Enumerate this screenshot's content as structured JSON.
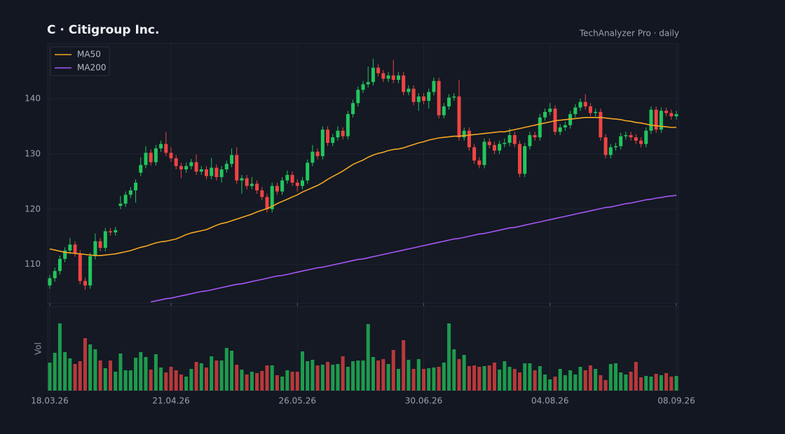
{
  "chart_data": {
    "type": "candlestick",
    "title": "C  ·  Citigroup Inc.",
    "subtitle": "TechAnalyzer Pro · daily",
    "categories": [
      "18.03.26",
      null,
      null,
      null,
      null,
      null,
      null,
      null,
      null,
      null,
      null,
      null,
      null,
      null,
      null,
      null,
      null,
      null,
      null,
      null,
      null,
      null,
      null,
      null,
      "21.04.26",
      null,
      null,
      null,
      null,
      null,
      null,
      null,
      null,
      null,
      null,
      null,
      null,
      null,
      null,
      null,
      null,
      null,
      null,
      null,
      null,
      null,
      null,
      null,
      null,
      "26.05.26",
      null,
      null,
      null,
      null,
      null,
      null,
      null,
      null,
      null,
      null,
      null,
      null,
      null,
      null,
      null,
      null,
      null,
      null,
      null,
      null,
      null,
      null,
      null,
      null,
      "30.06.26",
      null,
      null,
      null,
      null,
      null,
      null,
      null,
      null,
      null,
      null,
      null,
      null,
      null,
      null,
      null,
      null,
      null,
      null,
      null,
      null,
      null,
      null,
      null,
      null,
      "04.08.26",
      null,
      null,
      null,
      null,
      null,
      null,
      null,
      null,
      null,
      null,
      null,
      null,
      null,
      null,
      null,
      null,
      null,
      null,
      null,
      null,
      null,
      null,
      null,
      null,
      "08.09.26"
    ],
    "open": [
      106.2,
      107.5,
      108.8,
      111,
      112.5,
      113.6,
      112,
      107,
      106.2,
      111.5,
      114.2,
      113,
      116,
      115.8,
      120.6,
      121,
      122.6,
      123.4,
      126.6,
      128,
      130.2,
      128.5,
      131,
      131.8,
      130.2,
      129.2,
      127.8,
      127.2,
      127.8,
      128.5,
      126.8,
      127.2,
      126,
      127.5,
      125.8,
      127.2,
      128.2,
      129.8,
      125.2,
      125.6,
      124.2,
      124.6,
      123.4,
      122.2,
      120,
      124.2,
      123.2,
      125.2,
      126.2,
      124.8,
      124.2,
      125.2,
      128.4,
      130.4,
      129.6,
      134.4,
      132,
      133,
      134.2,
      133.2,
      137.2,
      139.2,
      141.6,
      142.6,
      143,
      145.6,
      144.6,
      143.6,
      144.2,
      143.4,
      144.2,
      141.2,
      141.8,
      139.4,
      140.4,
      139.6,
      141.2,
      143.2,
      137,
      138.6,
      140.2,
      140.4,
      133,
      134.2,
      131.2,
      128.8,
      128,
      132.2,
      131.6,
      130.6,
      131.8,
      132,
      133.4,
      131.8,
      126.4,
      131.4,
      133.4,
      133,
      136.6,
      137.6,
      138.2,
      134,
      134.8,
      135.2,
      137.2,
      138.4,
      139.4,
      138.6,
      137.4,
      137.6,
      133,
      129.8,
      131.2,
      131.4,
      133.2,
      133.4,
      133,
      132.4,
      131.8,
      134.2,
      138,
      134.4,
      137.8,
      137.4,
      136.8
    ],
    "high": [
      108.1,
      109.4,
      111.6,
      113.1,
      114.8,
      114.2,
      112.6,
      107.6,
      112.1,
      115.6,
      114.8,
      116.6,
      116.6,
      116.8,
      122.4,
      123.2,
      124,
      125.4,
      129.4,
      131.4,
      130.8,
      131.6,
      132.4,
      134,
      131.2,
      129.8,
      128.4,
      128.4,
      129.1,
      129.9,
      127.8,
      127.8,
      129.3,
      128.1,
      127.8,
      128.8,
      131,
      131.2,
      126.2,
      126.2,
      125.8,
      125.2,
      124,
      122.8,
      124.8,
      124.8,
      125.8,
      127,
      126.8,
      125.4,
      125.8,
      129,
      131.6,
      131,
      135,
      135,
      133.6,
      135,
      134.8,
      137.8,
      139.8,
      142.2,
      143.2,
      145.8,
      147.2,
      146.2,
      145.2,
      144.8,
      147,
      144.8,
      144.8,
      142.4,
      142.4,
      141,
      141,
      141.8,
      143.8,
      143.8,
      139.2,
      140.8,
      141,
      143.4,
      134.8,
      134.8,
      131.8,
      129.4,
      132.8,
      132.8,
      132.2,
      132.4,
      132.8,
      134.6,
      134,
      132.4,
      132,
      134,
      134,
      137.2,
      138.2,
      139.2,
      138.8,
      135.4,
      135.8,
      137.8,
      139,
      140,
      140.8,
      139.2,
      138.2,
      138.2,
      133.6,
      131.8,
      132,
      133.8,
      134,
      134,
      133.6,
      133,
      134.8,
      138.6,
      138.6,
      138.4,
      138.4,
      138,
      137.8
    ],
    "low": [
      105.6,
      106.9,
      108.2,
      110.4,
      111.9,
      111.4,
      106.4,
      105.4,
      105.6,
      110.9,
      112.4,
      112.4,
      115.2,
      115.2,
      120,
      120.4,
      122,
      121.2,
      126,
      127.4,
      127.9,
      127.9,
      130.4,
      129.6,
      128.6,
      127.2,
      125.6,
      126.6,
      127.2,
      126.2,
      126.2,
      125.4,
      125.4,
      125.2,
      124.8,
      126.6,
      127.6,
      124.6,
      122.8,
      123.6,
      123.6,
      122.8,
      121.6,
      119.4,
      119.4,
      122.6,
      122.6,
      124.6,
      124.2,
      123.2,
      123.6,
      124.6,
      127.8,
      129,
      129,
      131.4,
      131.4,
      132.4,
      132.6,
      132.6,
      136.6,
      138.6,
      141,
      142,
      142.4,
      144,
      143,
      143,
      142.8,
      142.8,
      140.6,
      140.6,
      138.8,
      137.8,
      139,
      138.2,
      140.6,
      136.4,
      136.4,
      138,
      139.6,
      132.4,
      132.4,
      130.6,
      128.2,
      127.4,
      127.4,
      131,
      130,
      130,
      131.2,
      131.4,
      131.2,
      125.8,
      125.8,
      130.8,
      132.4,
      132.4,
      136,
      137,
      133.4,
      133.4,
      134.2,
      134.6,
      136.6,
      137.8,
      138,
      136.8,
      136.8,
      132.4,
      129.2,
      129.2,
      130.6,
      130.8,
      132.6,
      132.4,
      131.8,
      131.2,
      131.2,
      133.6,
      133.8,
      133.8,
      136.8,
      136.2,
      136.2
    ],
    "close": [
      107.5,
      108.8,
      111,
      112.5,
      113.6,
      112,
      107,
      106.2,
      111.5,
      114.2,
      113,
      116,
      115.8,
      116.2,
      121,
      122.6,
      123.4,
      124.8,
      128,
      130.2,
      128.5,
      131,
      131.8,
      130.2,
      129.2,
      127.8,
      127.2,
      127.8,
      128.5,
      126.8,
      127.2,
      126,
      127.5,
      125.8,
      127.2,
      128.2,
      129.8,
      125.2,
      125.6,
      124.2,
      124.6,
      123.4,
      122.2,
      120,
      124.2,
      123.2,
      125.2,
      126.2,
      124.8,
      124.2,
      125.2,
      128.4,
      130.4,
      129.6,
      134.4,
      132,
      133,
      134.2,
      133.2,
      137.2,
      139.2,
      141.6,
      142.6,
      143,
      145.6,
      144.6,
      143.6,
      144.2,
      143.4,
      144.2,
      141.2,
      141.8,
      139.4,
      140.4,
      139.6,
      141.2,
      143.2,
      137,
      138.6,
      140.2,
      140.4,
      133,
      134.2,
      131.2,
      128.8,
      128,
      132.2,
      131.6,
      130.6,
      131.8,
      132,
      133.4,
      131.8,
      126.4,
      131.4,
      133.4,
      133,
      136.6,
      137.6,
      138.2,
      134,
      134.8,
      135.2,
      137.2,
      138.4,
      139.4,
      138.6,
      137.4,
      137.6,
      133,
      129.8,
      131.2,
      131.4,
      133.2,
      133.4,
      133,
      132.4,
      131.8,
      134.2,
      138,
      134.4,
      137.8,
      137.4,
      136.8,
      137.2
    ],
    "up_color": "#22c55e",
    "down_color": "#ef4444",
    "series": [
      {
        "name": "MA50",
        "color": "#f5a623",
        "values": [
          112.8,
          112.6,
          112.4,
          112.2,
          112.1,
          112.0,
          111.9,
          111.8,
          111.7,
          111.6,
          111.6,
          111.7,
          111.8,
          111.9,
          112.1,
          112.3,
          112.5,
          112.8,
          113.1,
          113.3,
          113.6,
          113.9,
          114.1,
          114.2,
          114.4,
          114.6,
          115.0,
          115.4,
          115.7,
          115.9,
          116.1,
          116.3,
          116.7,
          117.1,
          117.4,
          117.6,
          117.9,
          118.2,
          118.5,
          118.8,
          119.1,
          119.5,
          119.8,
          120.1,
          120.5,
          121.0,
          121.4,
          121.8,
          122.2,
          122.6,
          123.1,
          123.5,
          123.9,
          124.3,
          124.8,
          125.4,
          125.9,
          126.4,
          126.9,
          127.5,
          128.1,
          128.5,
          128.9,
          129.4,
          129.8,
          130.1,
          130.3,
          130.6,
          130.8,
          130.9,
          131.1,
          131.4,
          131.7,
          132.0,
          132.2,
          132.5,
          132.7,
          132.9,
          133.0,
          133.1,
          133.2,
          133.2,
          133.3,
          133.4,
          133.5,
          133.6,
          133.7,
          133.8,
          133.9,
          134.0,
          134.0,
          134.2,
          134.4,
          134.6,
          134.8,
          135.0,
          135.2,
          135.4,
          135.6,
          135.8,
          136.0,
          136.1,
          136.2,
          136.3,
          136.4,
          136.5,
          136.6,
          136.6,
          136.6,
          136.6,
          136.5,
          136.4,
          136.3,
          136.2,
          136.0,
          135.9,
          135.7,
          135.6,
          135.4,
          135.2,
          135.1,
          135.0,
          134.9,
          134.8,
          134.8
        ]
      },
      {
        "name": "MA200",
        "color": "#a855f7",
        "values": [
          null,
          null,
          null,
          null,
          null,
          null,
          null,
          null,
          null,
          null,
          null,
          null,
          null,
          null,
          null,
          null,
          null,
          null,
          null,
          null,
          103.2,
          103.4,
          103.6,
          103.8,
          103.9,
          104.1,
          104.3,
          104.5,
          104.7,
          104.9,
          105.1,
          105.2,
          105.4,
          105.6,
          105.8,
          106.0,
          106.2,
          106.4,
          106.5,
          106.7,
          106.9,
          107.1,
          107.3,
          107.5,
          107.7,
          107.9,
          108.0,
          108.2,
          108.4,
          108.6,
          108.8,
          109.0,
          109.2,
          109.4,
          109.5,
          109.7,
          109.9,
          110.1,
          110.3,
          110.5,
          110.7,
          110.9,
          111.0,
          111.2,
          111.4,
          111.6,
          111.8,
          112.0,
          112.2,
          112.4,
          112.6,
          112.8,
          113.0,
          113.2,
          113.4,
          113.6,
          113.8,
          114.0,
          114.2,
          114.4,
          114.6,
          114.7,
          114.9,
          115.1,
          115.3,
          115.5,
          115.6,
          115.8,
          116.0,
          116.2,
          116.4,
          116.6,
          116.7,
          116.9,
          117.1,
          117.3,
          117.5,
          117.7,
          117.9,
          118.1,
          118.3,
          118.5,
          118.7,
          118.9,
          119.1,
          119.3,
          119.5,
          119.7,
          119.9,
          120.1,
          120.3,
          120.4,
          120.6,
          120.8,
          121.0,
          121.1,
          121.3,
          121.5,
          121.7,
          121.8,
          122.0,
          122.1,
          122.3,
          122.4,
          122.5
        ]
      }
    ],
    "ylim": [
      103,
      150
    ],
    "yticks": [
      110,
      120,
      130,
      140
    ],
    "grid": true,
    "legend": "upper left",
    "volume": {
      "label": "Vol",
      "ylim": [
        0,
        120
      ],
      "values": [
        40,
        54,
        96,
        55,
        46,
        38,
        42,
        75,
        66,
        59,
        43,
        32,
        43,
        27,
        53,
        29,
        29,
        47,
        55,
        48,
        30,
        52,
        33,
        26,
        34,
        29,
        23,
        20,
        31,
        41,
        39,
        33,
        49,
        43,
        43,
        61,
        57,
        37,
        30,
        23,
        27,
        25,
        28,
        36,
        36,
        22,
        20,
        29,
        27,
        27,
        56,
        42,
        44,
        36,
        37,
        41,
        37,
        38,
        49,
        34,
        42,
        43,
        43,
        95,
        48,
        43,
        45,
        38,
        58,
        31,
        72,
        44,
        31,
        45,
        31,
        32,
        33,
        34,
        40,
        96,
        59,
        45,
        51,
        35,
        36,
        34,
        35,
        36,
        40,
        30,
        42,
        34,
        31,
        26,
        39,
        39,
        29,
        35,
        23,
        16,
        20,
        31,
        22,
        29,
        23,
        34,
        29,
        36,
        31,
        22,
        15,
        38,
        39,
        26,
        23,
        27,
        41,
        19,
        21,
        20,
        24,
        22,
        25,
        20,
        21
      ]
    }
  }
}
